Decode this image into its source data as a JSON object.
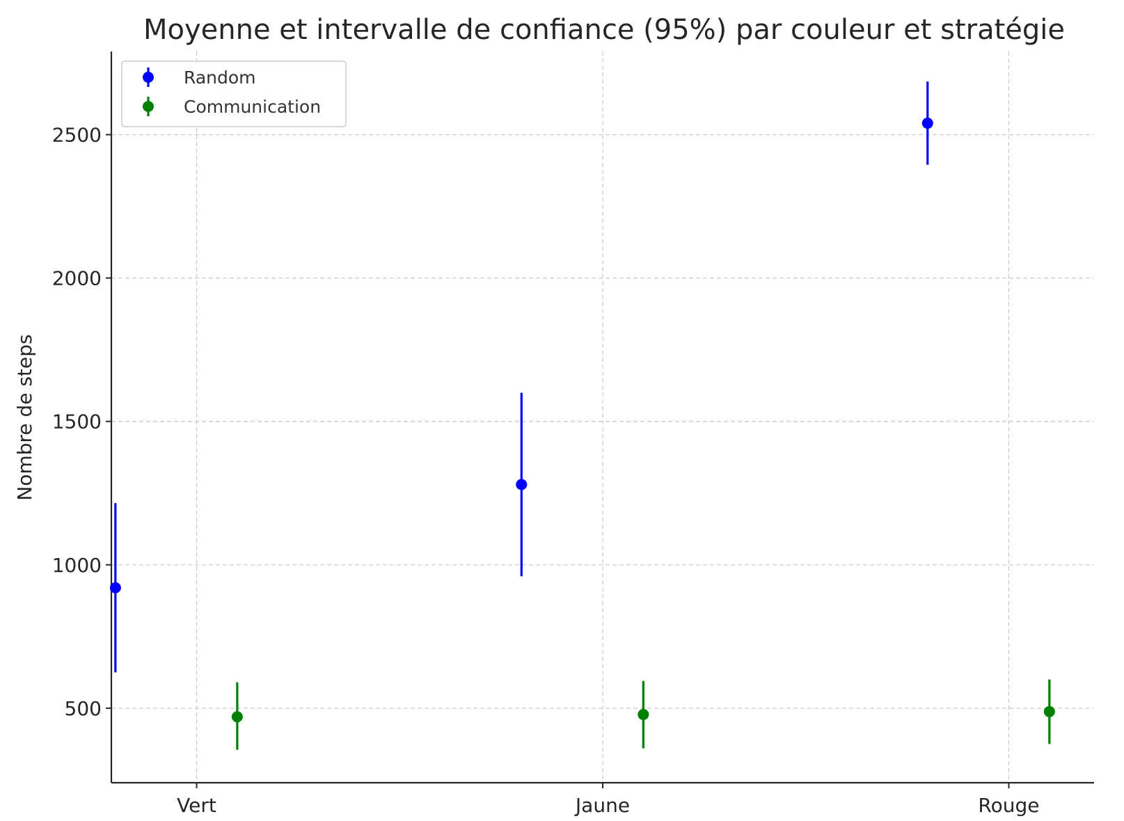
{
  "chart_data": {
    "type": "scatter",
    "title": "Moyenne et intervalle de confiance (95%) par couleur et stratégie",
    "xlabel": "",
    "ylabel": "Nombre de steps",
    "categories": [
      "Vert",
      "Jaune",
      "Rouge"
    ],
    "ylim": [
      240,
      2790
    ],
    "yticks": [
      500,
      1000,
      1500,
      2000,
      2500
    ],
    "grid": true,
    "legend_position": "top-left",
    "series": [
      {
        "name": "Random",
        "color": "#0000ff",
        "offset": -0.2,
        "values": [
          920,
          1280,
          2540
        ],
        "ci_low": [
          625,
          960,
          2395
        ],
        "ci_high": [
          1215,
          1600,
          2685
        ]
      },
      {
        "name": "Communication",
        "color": "#008000",
        "offset": 0.1,
        "values": [
          470,
          478,
          488
        ],
        "ci_low": [
          355,
          360,
          375
        ],
        "ci_high": [
          590,
          595,
          600
        ]
      }
    ]
  }
}
